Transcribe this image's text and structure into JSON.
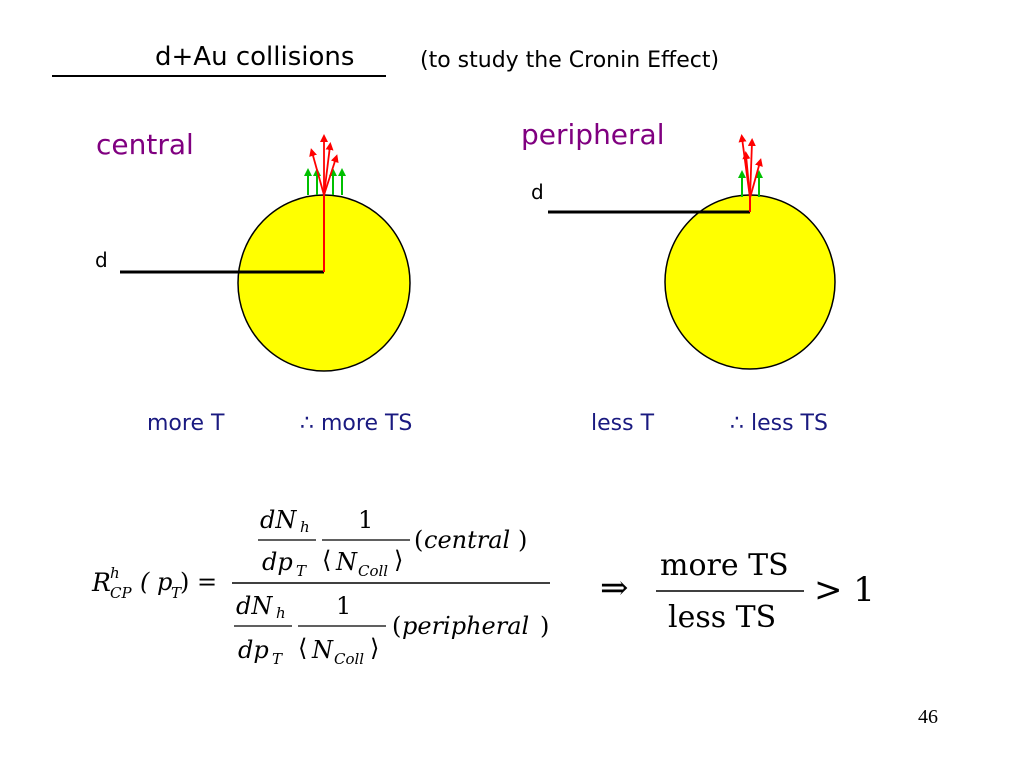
{
  "slide": {
    "title": "d+Au collisions",
    "subtitle": "(to study the Cronin Effect)",
    "page_number": "46"
  },
  "left_panel": {
    "label": "central",
    "d_label": "d",
    "caption_a": "more  T",
    "caption_b": "∴ more TS"
  },
  "right_panel": {
    "label": "peripheral",
    "d_label": "d",
    "caption_a": "less  T",
    "caption_b": "∴ less TS"
  },
  "formula": {
    "lhs_R": "R",
    "lhs_sup": "h",
    "lhs_sub": "CP",
    "lhs_arg": "( p",
    "lhs_arg_sub": "T",
    "lhs_close": " ) =",
    "dN": "dN",
    "h": "h",
    "dp": "dp",
    "T": "T",
    "one": "1",
    "N": "N",
    "coll": "Coll",
    "central": "central",
    "peripheral": "peripheral",
    "implies": "⇒",
    "more_ts": "more TS",
    "less_ts": "less TS",
    "gt_one": "> 1"
  },
  "colors": {
    "nucleus_fill": "#ffff00",
    "nucleus_stroke": "#000000",
    "red_arrow": "#ff0000",
    "green_arrow": "#00c000",
    "purple_text": "#800080",
    "caption_text": "#1a1a80"
  }
}
